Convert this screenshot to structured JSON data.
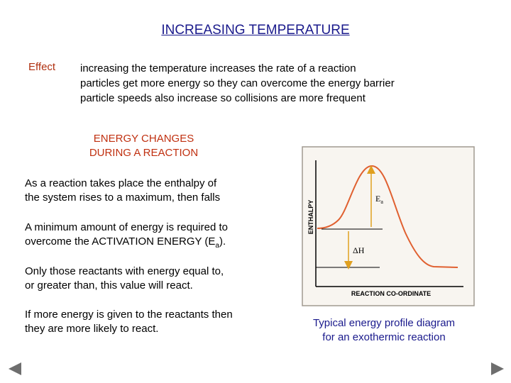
{
  "title": "INCREASING TEMPERATURE",
  "effect": {
    "label": "Effect",
    "lines": [
      "increasing the temperature increases the rate of a reaction",
      "particles get more energy so they can overcome the energy barrier",
      "particle speeds also increase so collisions are more frequent"
    ]
  },
  "section": {
    "heading_line1": "ENERGY CHANGES",
    "heading_line2": "DURING A REACTION"
  },
  "paragraphs": {
    "p1_line1": "As a reaction takes place the enthalpy of",
    "p1_line2": "the system rises to a maximum, then falls",
    "p2_line1": "A minimum amount of energy is required to",
    "p2_line2_prefix": "overcome the ACTIVATION ENERGY (E",
    "p2_subscript": "a",
    "p2_line2_suffix": ").",
    "p3_line1": "Only those reactants with energy equal to,",
    "p3_line2": "or greater than, this value will react.",
    "p4_line1": "If more energy is given to the reactants then",
    "p4_line2": "they are more likely to react."
  },
  "diagram": {
    "y_label": "ENTHALPY",
    "x_label": "REACTION CO-ORDINATE",
    "ea_label": "E",
    "ea_subscript": "a",
    "dh_label": "ΔH",
    "curve_color": "#e06030",
    "arrow_color": "#e0a020",
    "panel_bg": "#f8f5f0"
  },
  "caption": {
    "line1": "Typical energy profile diagram",
    "line2": "for an exothermic reaction"
  },
  "nav": {
    "prev_icon": "triangle-left",
    "next_icon": "triangle-right"
  }
}
